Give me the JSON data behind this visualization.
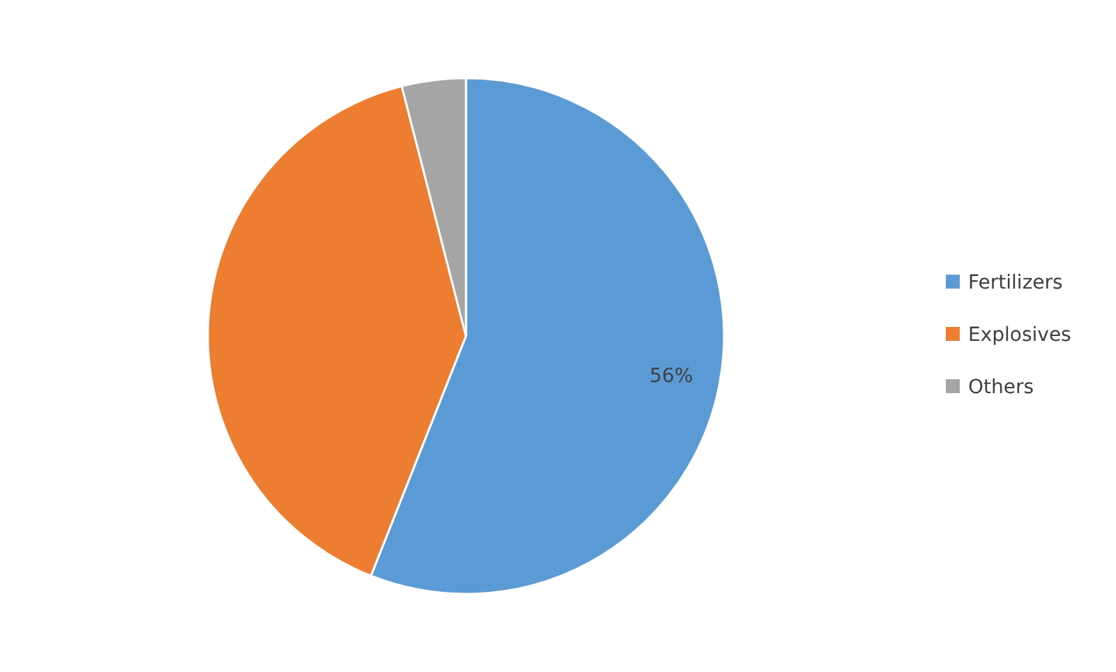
{
  "chart_data": {
    "type": "pie",
    "categories": [
      "Fertilizers",
      "Explosives",
      "Others"
    ],
    "values": [
      56,
      40,
      4
    ],
    "colors": [
      "#5b9bd5",
      "#ed7d31",
      "#a5a5a5"
    ],
    "value_labels": [
      "56%",
      null,
      null
    ],
    "legend": "right"
  }
}
